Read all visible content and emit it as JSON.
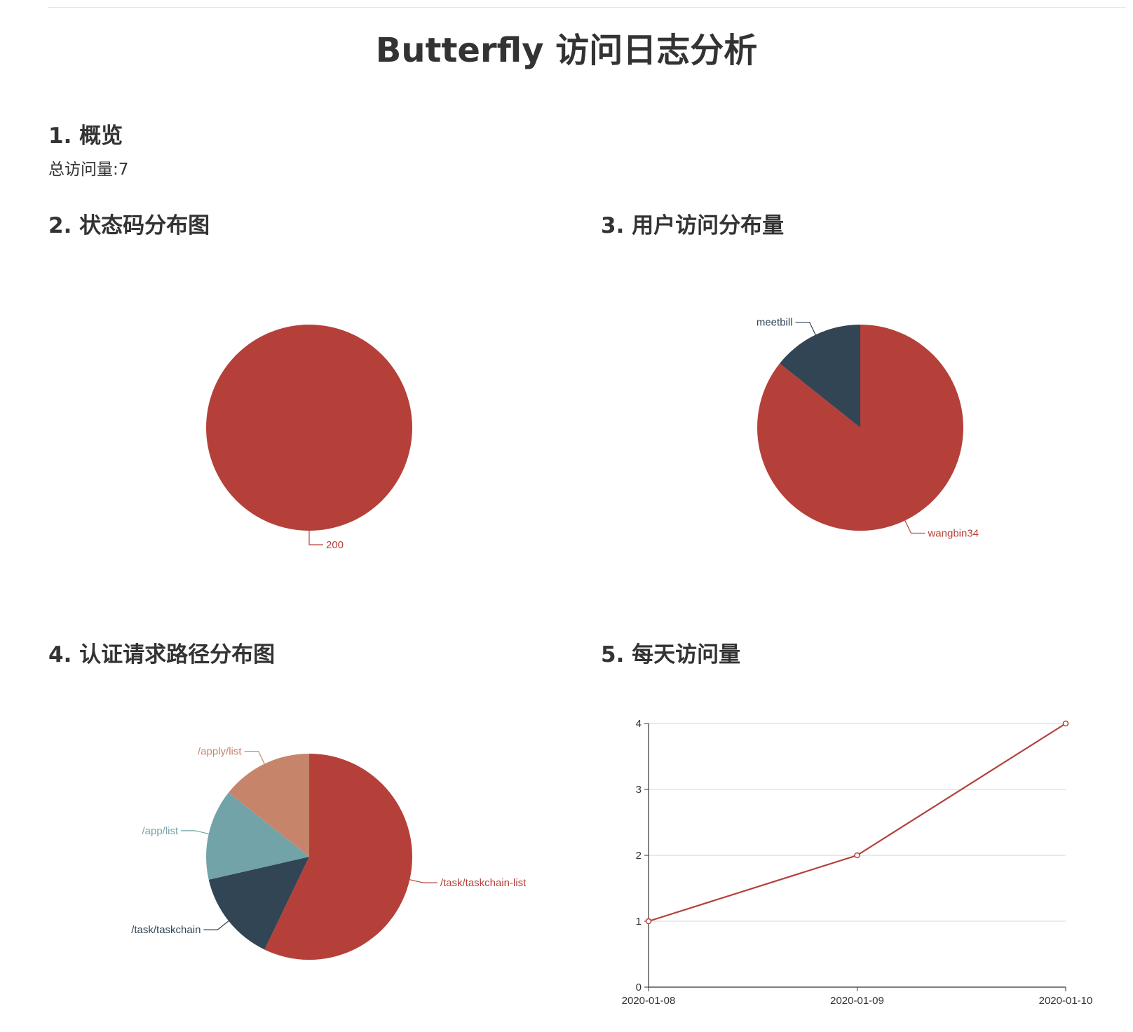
{
  "page": {
    "title": "Butterfly 访问日志分析"
  },
  "sections": {
    "overview": {
      "heading": "1. 概览",
      "total_label": "总访问量:7"
    },
    "status": {
      "heading": "2. 状态码分布图"
    },
    "users": {
      "heading": "3. 用户访问分布量"
    },
    "paths": {
      "heading": "4. 认证请求路径分布图"
    },
    "daily": {
      "heading": "5. 每天访问量"
    }
  },
  "colors": {
    "red": "#b5403a",
    "navy": "#314555",
    "teal": "#72a3a8",
    "salmon": "#c6856a",
    "text": "#333333",
    "grid": "#d0d5dc"
  },
  "chart_data": [
    {
      "id": "status-pie",
      "type": "pie",
      "slices": [
        {
          "label": "200",
          "value": 7,
          "color": "#b5403a"
        }
      ]
    },
    {
      "id": "user-pie",
      "type": "pie",
      "slices": [
        {
          "label": "wangbin34",
          "value": 6,
          "color": "#b5403a"
        },
        {
          "label": "meetbill",
          "value": 1,
          "color": "#314555"
        }
      ]
    },
    {
      "id": "path-pie",
      "type": "pie",
      "slices": [
        {
          "label": "/task/taskchain-list",
          "value": 4,
          "color": "#b5403a"
        },
        {
          "label": "/task/taskchain",
          "value": 1,
          "color": "#314555"
        },
        {
          "label": "/app/list",
          "value": 1,
          "color": "#72a3a8"
        },
        {
          "label": "/apply/list",
          "value": 1,
          "color": "#c6856a"
        }
      ]
    },
    {
      "id": "daily-line",
      "type": "line",
      "x": [
        "2020-01-08",
        "2020-01-09",
        "2020-01-10"
      ],
      "series": [
        {
          "values": [
            1,
            2,
            4
          ],
          "color": "#b5403a"
        }
      ],
      "ylim": [
        0,
        4
      ],
      "yticks": [
        0,
        1,
        2,
        3,
        4
      ],
      "grid": true
    }
  ]
}
